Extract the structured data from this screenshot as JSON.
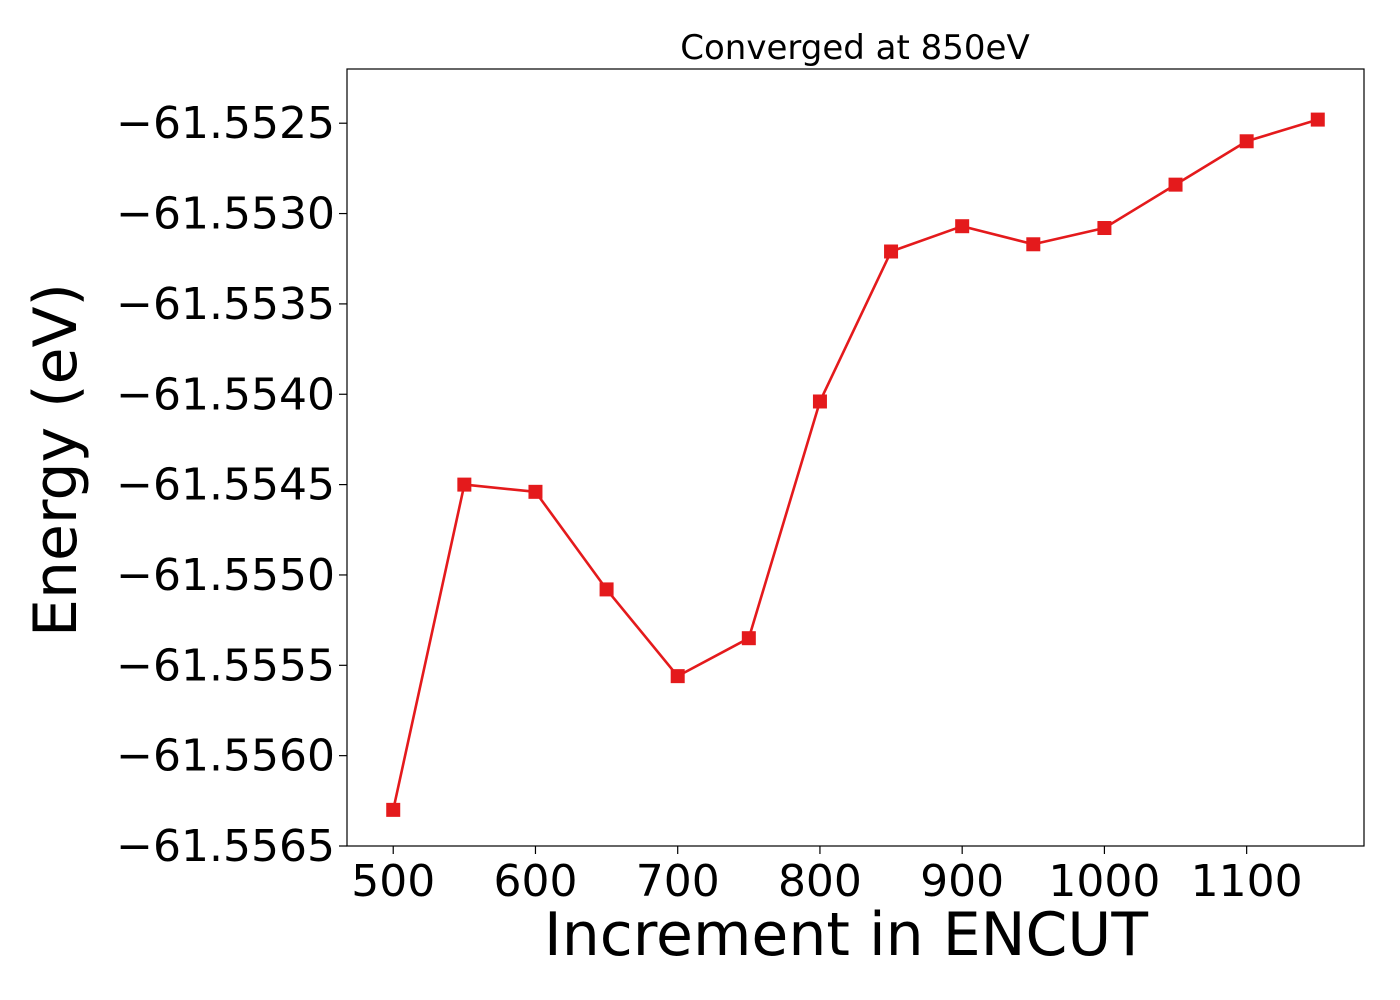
{
  "chart_data": {
    "type": "line",
    "title": "Converged at 850eV",
    "xlabel": "Increment in ENCUT",
    "ylabel": "Energy (eV)",
    "x": [
      500,
      550,
      600,
      650,
      700,
      750,
      800,
      850,
      900,
      950,
      1000,
      1050,
      1100,
      1150
    ],
    "series": [
      {
        "values": [
          -61.5563,
          -61.5545,
          -61.55454,
          -61.55508,
          -61.55556,
          -61.55535,
          -61.55404,
          -61.55321,
          -61.55307,
          -61.55317,
          -61.55308,
          -61.55284,
          -61.5526,
          -61.55248
        ],
        "color": "#e41a1c",
        "marker": "square"
      }
    ],
    "xlim": [
      467.5,
      1182.5
    ],
    "ylim": [
      -61.5565,
      -61.5522
    ],
    "xticks": [
      500,
      600,
      700,
      800,
      900,
      1000,
      1100
    ],
    "xtick_labels": [
      "500",
      "600",
      "700",
      "800",
      "900",
      "1000",
      "1100"
    ],
    "yticks": [
      -61.5565,
      -61.556,
      -61.5555,
      -61.555,
      -61.5545,
      -61.554,
      -61.5535,
      -61.553,
      -61.5525
    ],
    "ytick_labels": [
      "−61.5565",
      "−61.5560",
      "−61.5555",
      "−61.5550",
      "−61.5545",
      "−61.5540",
      "−61.5535",
      "−61.5530",
      "−61.5525"
    ],
    "grid": false,
    "legend": "none"
  }
}
